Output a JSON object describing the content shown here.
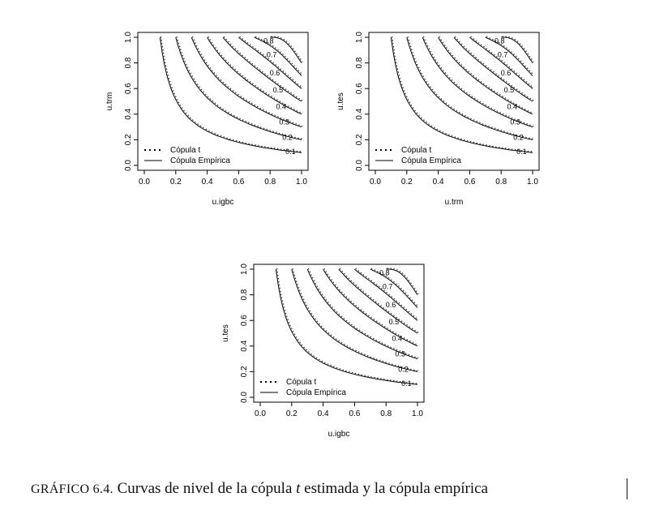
{
  "chart_data": [
    {
      "type": "line",
      "subtype": "contour",
      "xlabel": "u.igbc",
      "ylabel": "u.trm",
      "xlim": [
        0,
        1
      ],
      "ylim": [
        0,
        1
      ],
      "x_ticks": [
        "0.0",
        "0.2",
        "0.4",
        "0.6",
        "0.8",
        "1.0"
      ],
      "y_ticks": [
        "0.0",
        "0.2",
        "0.4",
        "0.6",
        "0.8",
        "1.0"
      ],
      "levels": [
        "0.1",
        "0.2",
        "0.3",
        "0.4",
        "0.5",
        "0.6",
        "0.7",
        "0.8"
      ],
      "level_values": [
        0.1,
        0.2,
        0.3,
        0.4,
        0.5,
        0.6,
        0.7,
        0.8
      ],
      "legend": {
        "entries": [
          "Cópula t",
          "Cópula Empírica"
        ],
        "placement": "bottom-left"
      },
      "series": [
        {
          "name": "Cópula t",
          "style": "dotted"
        },
        {
          "name": "Cópula Empírica",
          "style": "solid"
        }
      ]
    },
    {
      "type": "line",
      "subtype": "contour",
      "xlabel": "u.trm",
      "ylabel": "u.tes",
      "xlim": [
        0,
        1
      ],
      "ylim": [
        0,
        1
      ],
      "x_ticks": [
        "0.0",
        "0.2",
        "0.4",
        "0.6",
        "0.8",
        "1.0"
      ],
      "y_ticks": [
        "0.0",
        "0.2",
        "0.4",
        "0.6",
        "0.8",
        "1.0"
      ],
      "levels": [
        "0.1",
        "0.2",
        "0.3",
        "0.4",
        "0.5",
        "0.6",
        "0.7",
        "0.8"
      ],
      "level_values": [
        0.1,
        0.2,
        0.3,
        0.4,
        0.5,
        0.6,
        0.7,
        0.8
      ],
      "legend": {
        "entries": [
          "Cópula t",
          "Cópula Empírica"
        ],
        "placement": "bottom-left"
      },
      "series": [
        {
          "name": "Cópula t",
          "style": "dotted"
        },
        {
          "name": "Cópula Empírica",
          "style": "solid"
        }
      ]
    },
    {
      "type": "line",
      "subtype": "contour",
      "xlabel": "u.igbc",
      "ylabel": "u.tes",
      "xlim": [
        0,
        1
      ],
      "ylim": [
        0,
        1
      ],
      "x_ticks": [
        "0.0",
        "0.2",
        "0.4",
        "0.6",
        "0.8",
        "1.0"
      ],
      "y_ticks": [
        "0.0",
        "0.2",
        "0.4",
        "0.6",
        "0.8",
        "1.0"
      ],
      "levels": [
        "0.1",
        "0.2",
        "0.3",
        "0.4",
        "0.5",
        "0.6",
        "0.7",
        "0.8"
      ],
      "level_values": [
        0.1,
        0.2,
        0.3,
        0.4,
        0.5,
        0.6,
        0.7,
        0.8
      ],
      "legend": {
        "entries": [
          "Cópula t",
          "Cópula Empírica"
        ],
        "placement": "bottom-left"
      },
      "series": [
        {
          "name": "Cópula t",
          "style": "dotted"
        },
        {
          "name": "Cópula Empírica",
          "style": "solid"
        }
      ]
    }
  ],
  "caption": {
    "label": "GRÁFICO 6.4.",
    "text_before": "Curvas de nivel de la cópula",
    "variable": "t",
    "text_after": "estimada y la cópula empírica"
  }
}
